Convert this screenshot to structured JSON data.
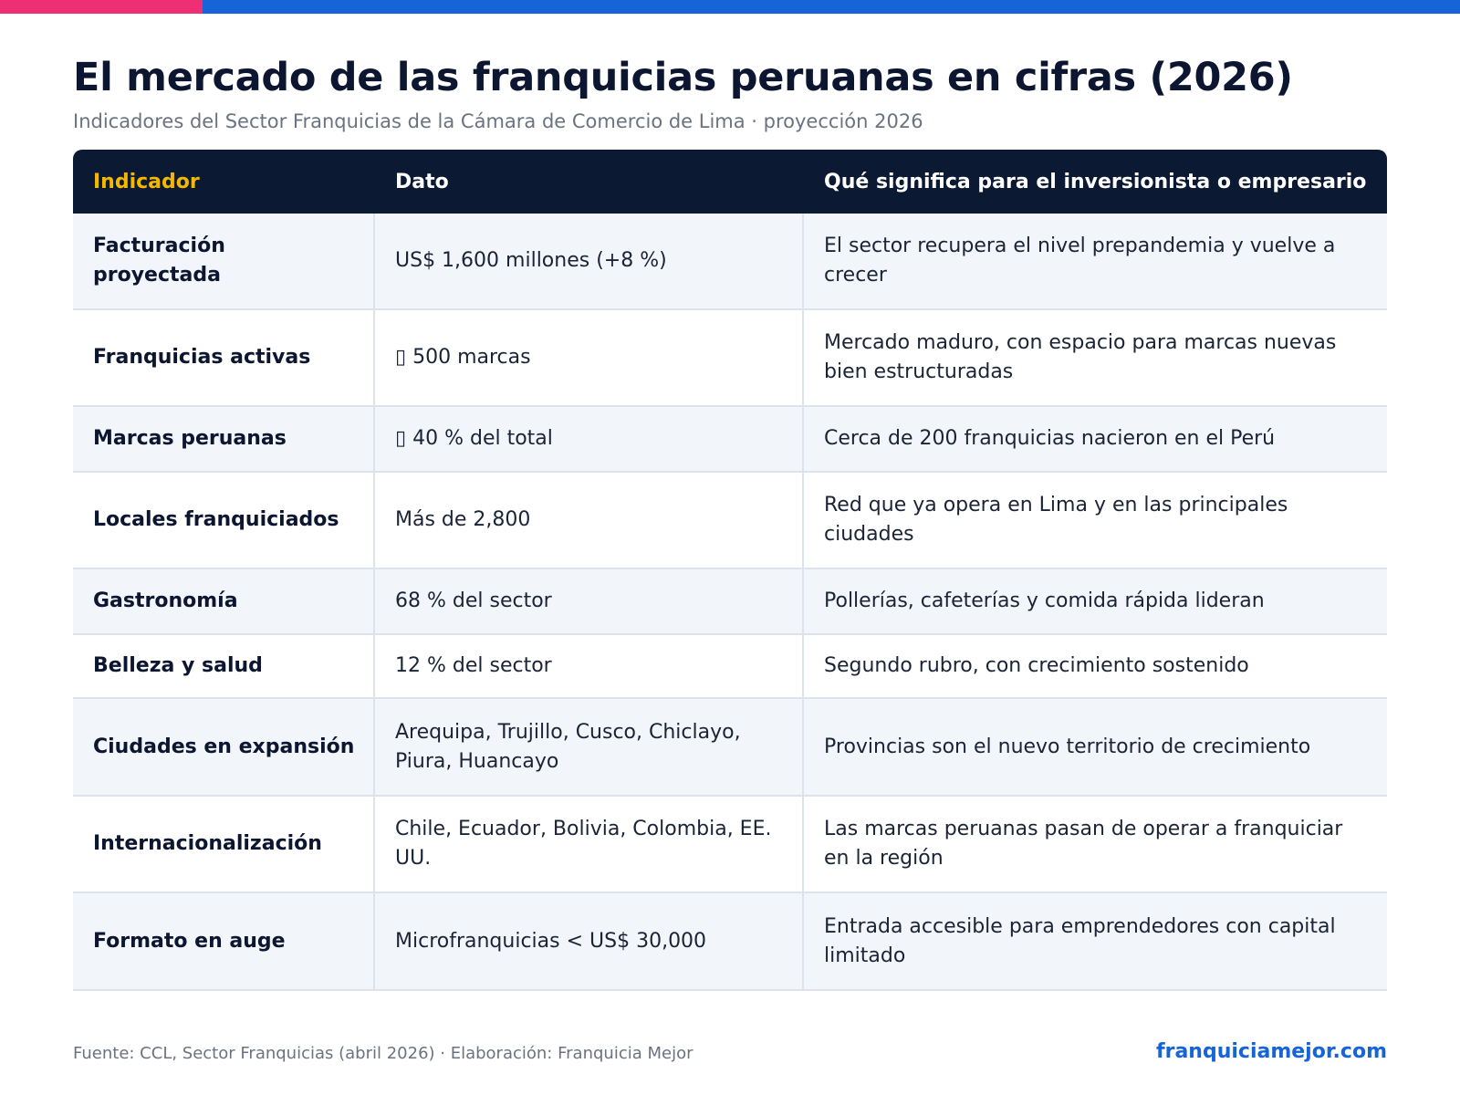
{
  "header": {
    "title": "El mercado de las franquicias peruanas en cifras (2026)",
    "subtitle": "Indicadores del Sector Franquicias de la Cámara de Comercio de Lima · proyección 2026"
  },
  "table": {
    "columns": [
      "Indicador",
      "Dato",
      "Qué significa para el inversionista o empresario"
    ],
    "rows": [
      {
        "indicador": "Facturación proyectada",
        "dato": "US$ 1,600 millones (+8 %)",
        "significado": "El sector recupera el nivel prepandemia y vuelve a crecer"
      },
      {
        "indicador": "Franquicias activas",
        "dato": "▯ 500 marcas",
        "significado": "Mercado maduro, con espacio para marcas nuevas bien estructuradas"
      },
      {
        "indicador": "Marcas peruanas",
        "dato": "▯ 40 % del total",
        "significado": "Cerca de 200 franquicias nacieron en el Perú"
      },
      {
        "indicador": "Locales franquiciados",
        "dato": "Más de 2,800",
        "significado": "Red que ya opera en Lima y en las principales ciudades"
      },
      {
        "indicador": "Gastronomía",
        "dato": "68 % del sector",
        "significado": "Pollerías, cafeterías y comida rápida lideran"
      },
      {
        "indicador": "Belleza y salud",
        "dato": "12 % del sector",
        "significado": "Segundo rubro, con crecimiento sostenido"
      },
      {
        "indicador": "Ciudades en expansión",
        "dato": "Arequipa, Trujillo, Cusco, Chiclayo, Piura, Huancayo",
        "significado": "Provincias son el nuevo territorio de crecimiento"
      },
      {
        "indicador": "Internacionalización",
        "dato": "Chile, Ecuador, Bolivia, Colombia, EE. UU.",
        "significado": "Las marcas peruanas pasan de operar a franquiciar en la región"
      },
      {
        "indicador": "Formato en auge",
        "dato": "Microfranquicias < US$ 30,000",
        "significado": "Entrada accesible para emprendedores con capital limitado"
      }
    ]
  },
  "footer": {
    "source": "Fuente: CCL, Sector Franquicias (abril 2026) · Elaboración: Franquicia Mejor",
    "site": "franquiciamejor.com"
  },
  "colors": {
    "accent_pink": "#ef2f73",
    "accent_blue": "#1565d8",
    "header_bg": "#0c1932",
    "header_accent": "#f5b800"
  }
}
